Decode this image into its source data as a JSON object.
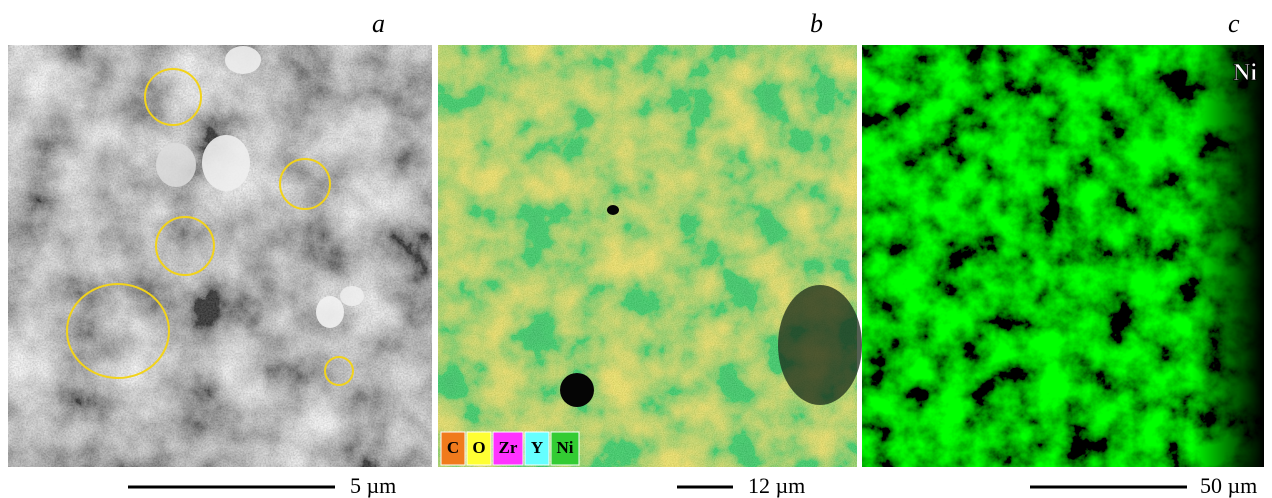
{
  "panels": [
    {
      "label": "a",
      "scale_bar": "5 µm"
    },
    {
      "label": "b",
      "scale_bar": "12 µm",
      "legend": [
        "C",
        "O",
        "Zr",
        "Y",
        "Ni"
      ]
    },
    {
      "label": "c",
      "scale_bar": "50 µm",
      "element": "Ni"
    }
  ]
}
